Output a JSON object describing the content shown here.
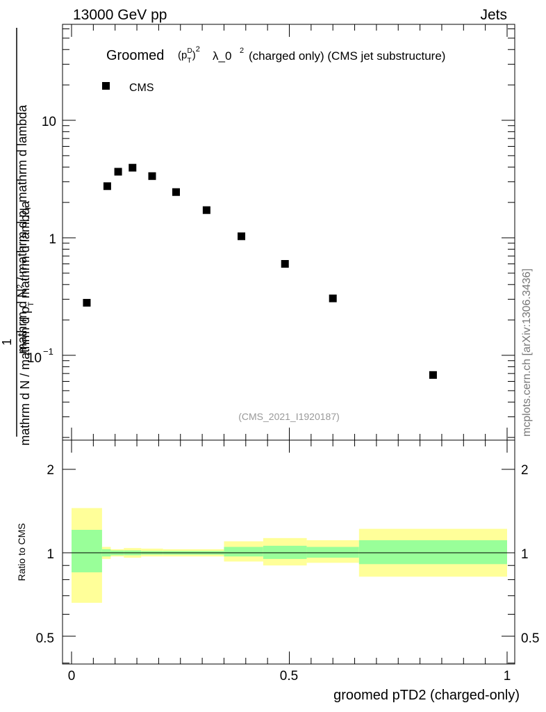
{
  "header": {
    "left": "13000 GeV pp",
    "right": "Jets"
  },
  "side_label": "mcplots.cern.ch [arXiv:1306.3436]",
  "main_plot": {
    "title_main": "Groomed",
    "title_rest": "λ_0",
    "title_exp": "2",
    "title_tail": "(charged only) (CMS jet substructure)",
    "ylabel_line1_parts": [
      "mathrm d N",
      "mathrm d p",
      "mathrm d lambda"
    ],
    "ylabel_line2_parts": [
      "mathrm d N / mathrm d p",
      "mathrm d p",
      "mathrm d N"
    ],
    "ylabel_prefix": "1",
    "watermark": "(CMS_2021_I1920187)",
    "legend_label": "CMS",
    "ytick_labels": [
      "10",
      "1",
      "10"
    ],
    "ytick_exp": "−1"
  },
  "ratio_plot": {
    "ylabel": "Ratio to CMS",
    "ytick_labels": [
      "2",
      "1",
      "0.5"
    ],
    "xtick_labels": [
      "0",
      "0.5",
      "1"
    ],
    "xlabel": "groomed pTD2 (charged-only)"
  },
  "colors": {
    "band_inner": "#99ff99",
    "band_outer": "#ffff99",
    "marker": "#000000"
  },
  "chart_data": [
    {
      "type": "scatter",
      "name": "main",
      "yscale": "log",
      "xlim": [
        0,
        1
      ],
      "ylim": [
        0.02,
        70
      ],
      "series": [
        {
          "name": "CMS",
          "x": [
            0.035,
            0.082,
            0.107,
            0.14,
            0.185,
            0.24,
            0.31,
            0.39,
            0.49,
            0.6,
            0.83
          ],
          "y": [
            0.28,
            2.75,
            3.65,
            3.95,
            3.35,
            2.45,
            1.72,
            1.03,
            0.6,
            0.305,
            0.068
          ]
        }
      ]
    },
    {
      "type": "area",
      "name": "ratio",
      "yscale": "log",
      "xlim": [
        0,
        1
      ],
      "ylim": [
        0.4,
        2.5
      ],
      "bins": [
        {
          "x0": 0.0,
          "x1": 0.07,
          "inner": [
            0.85,
            1.21
          ],
          "outer": [
            0.66,
            1.45
          ]
        },
        {
          "x0": 0.07,
          "x1": 0.09,
          "inner": [
            0.97,
            1.03
          ],
          "outer": [
            0.95,
            1.05
          ]
        },
        {
          "x0": 0.09,
          "x1": 0.12,
          "inner": [
            0.98,
            1.02
          ],
          "outer": [
            0.97,
            1.03
          ]
        },
        {
          "x0": 0.12,
          "x1": 0.16,
          "inner": [
            0.98,
            1.02
          ],
          "outer": [
            0.96,
            1.04
          ]
        },
        {
          "x0": 0.16,
          "x1": 0.21,
          "inner": [
            0.985,
            1.015
          ],
          "outer": [
            0.97,
            1.035
          ]
        },
        {
          "x0": 0.21,
          "x1": 0.35,
          "inner": [
            0.985,
            1.015
          ],
          "outer": [
            0.97,
            1.03
          ]
        },
        {
          "x0": 0.35,
          "x1": 0.44,
          "inner": [
            0.97,
            1.05
          ],
          "outer": [
            0.93,
            1.1
          ]
        },
        {
          "x0": 0.44,
          "x1": 0.54,
          "inner": [
            0.95,
            1.06
          ],
          "outer": [
            0.9,
            1.13
          ]
        },
        {
          "x0": 0.54,
          "x1": 0.66,
          "inner": [
            0.96,
            1.05
          ],
          "outer": [
            0.92,
            1.11
          ]
        },
        {
          "x0": 0.66,
          "x1": 1.0,
          "inner": [
            0.91,
            1.11
          ],
          "outer": [
            0.82,
            1.22
          ]
        }
      ],
      "reference_line": 1
    }
  ]
}
